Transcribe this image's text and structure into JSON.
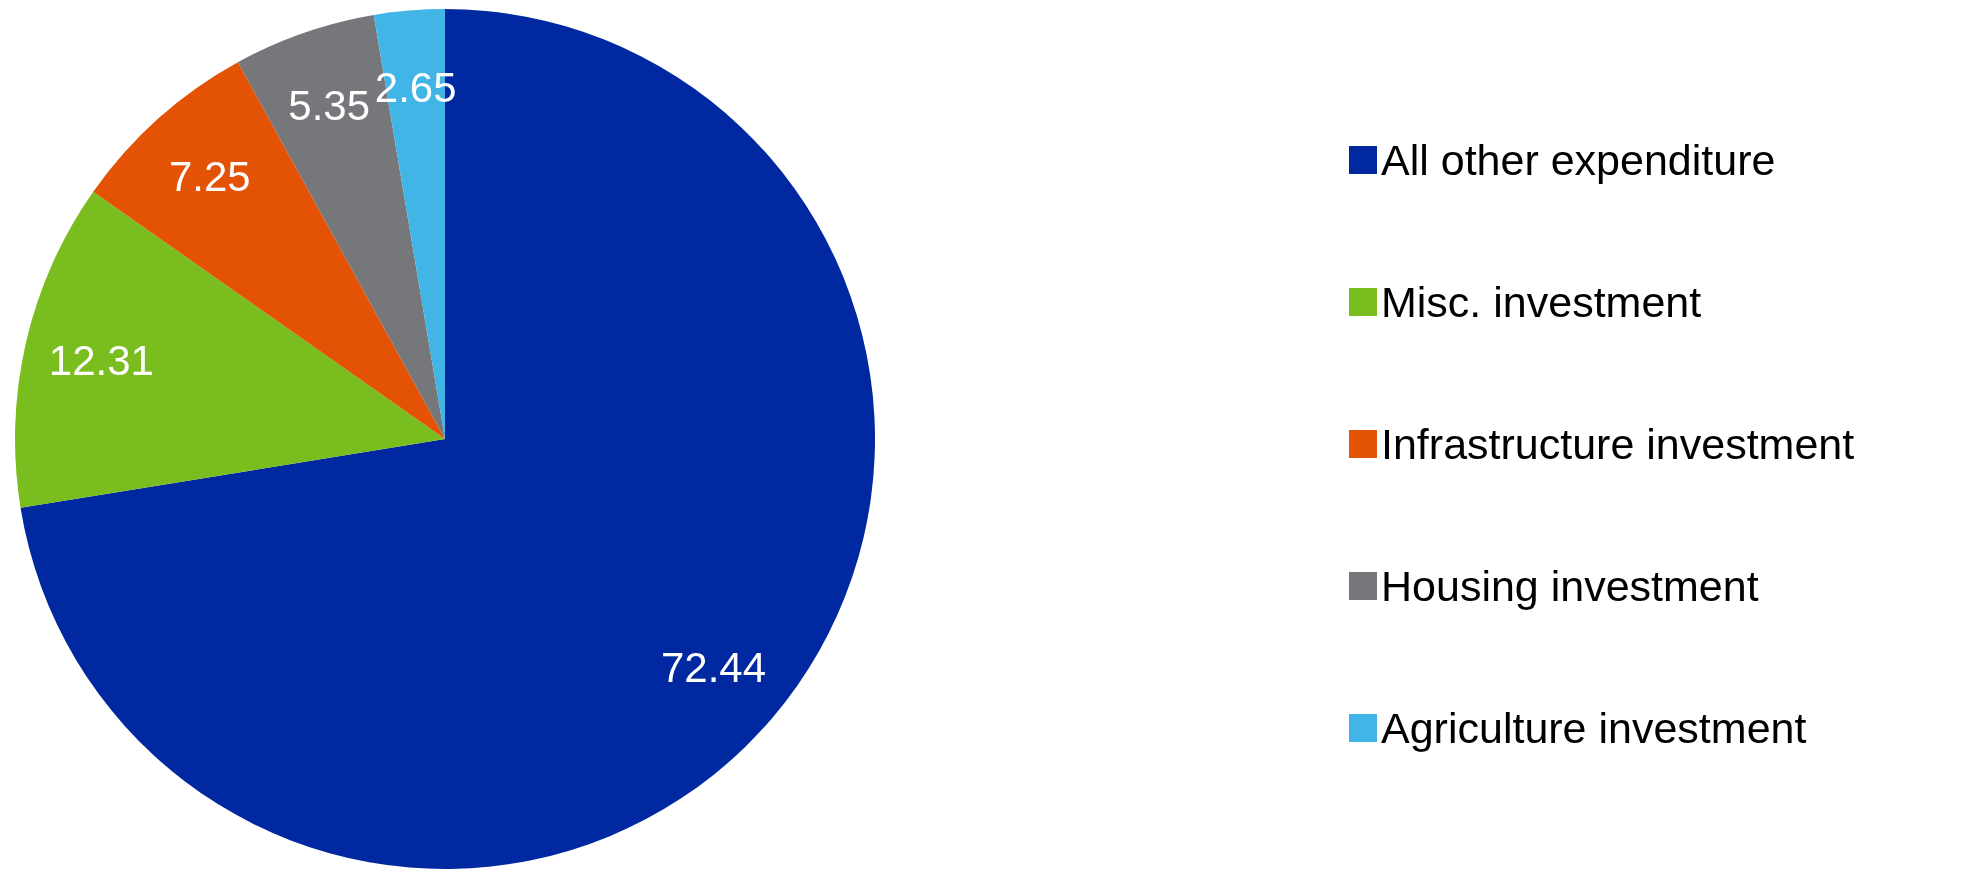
{
  "chart_data": {
    "type": "pie",
    "categories": [
      "All other expenditure",
      "Misc. investment",
      "Infrastructure investment",
      "Housing investment",
      "Agriculture investment"
    ],
    "values": [
      72.44,
      12.31,
      7.25,
      5.35,
      2.65
    ],
    "colors": [
      "#0028a0",
      "#7abd1f",
      "#e35205",
      "#75777a",
      "#41b6e6"
    ],
    "data_labels": true,
    "legend": "right"
  }
}
